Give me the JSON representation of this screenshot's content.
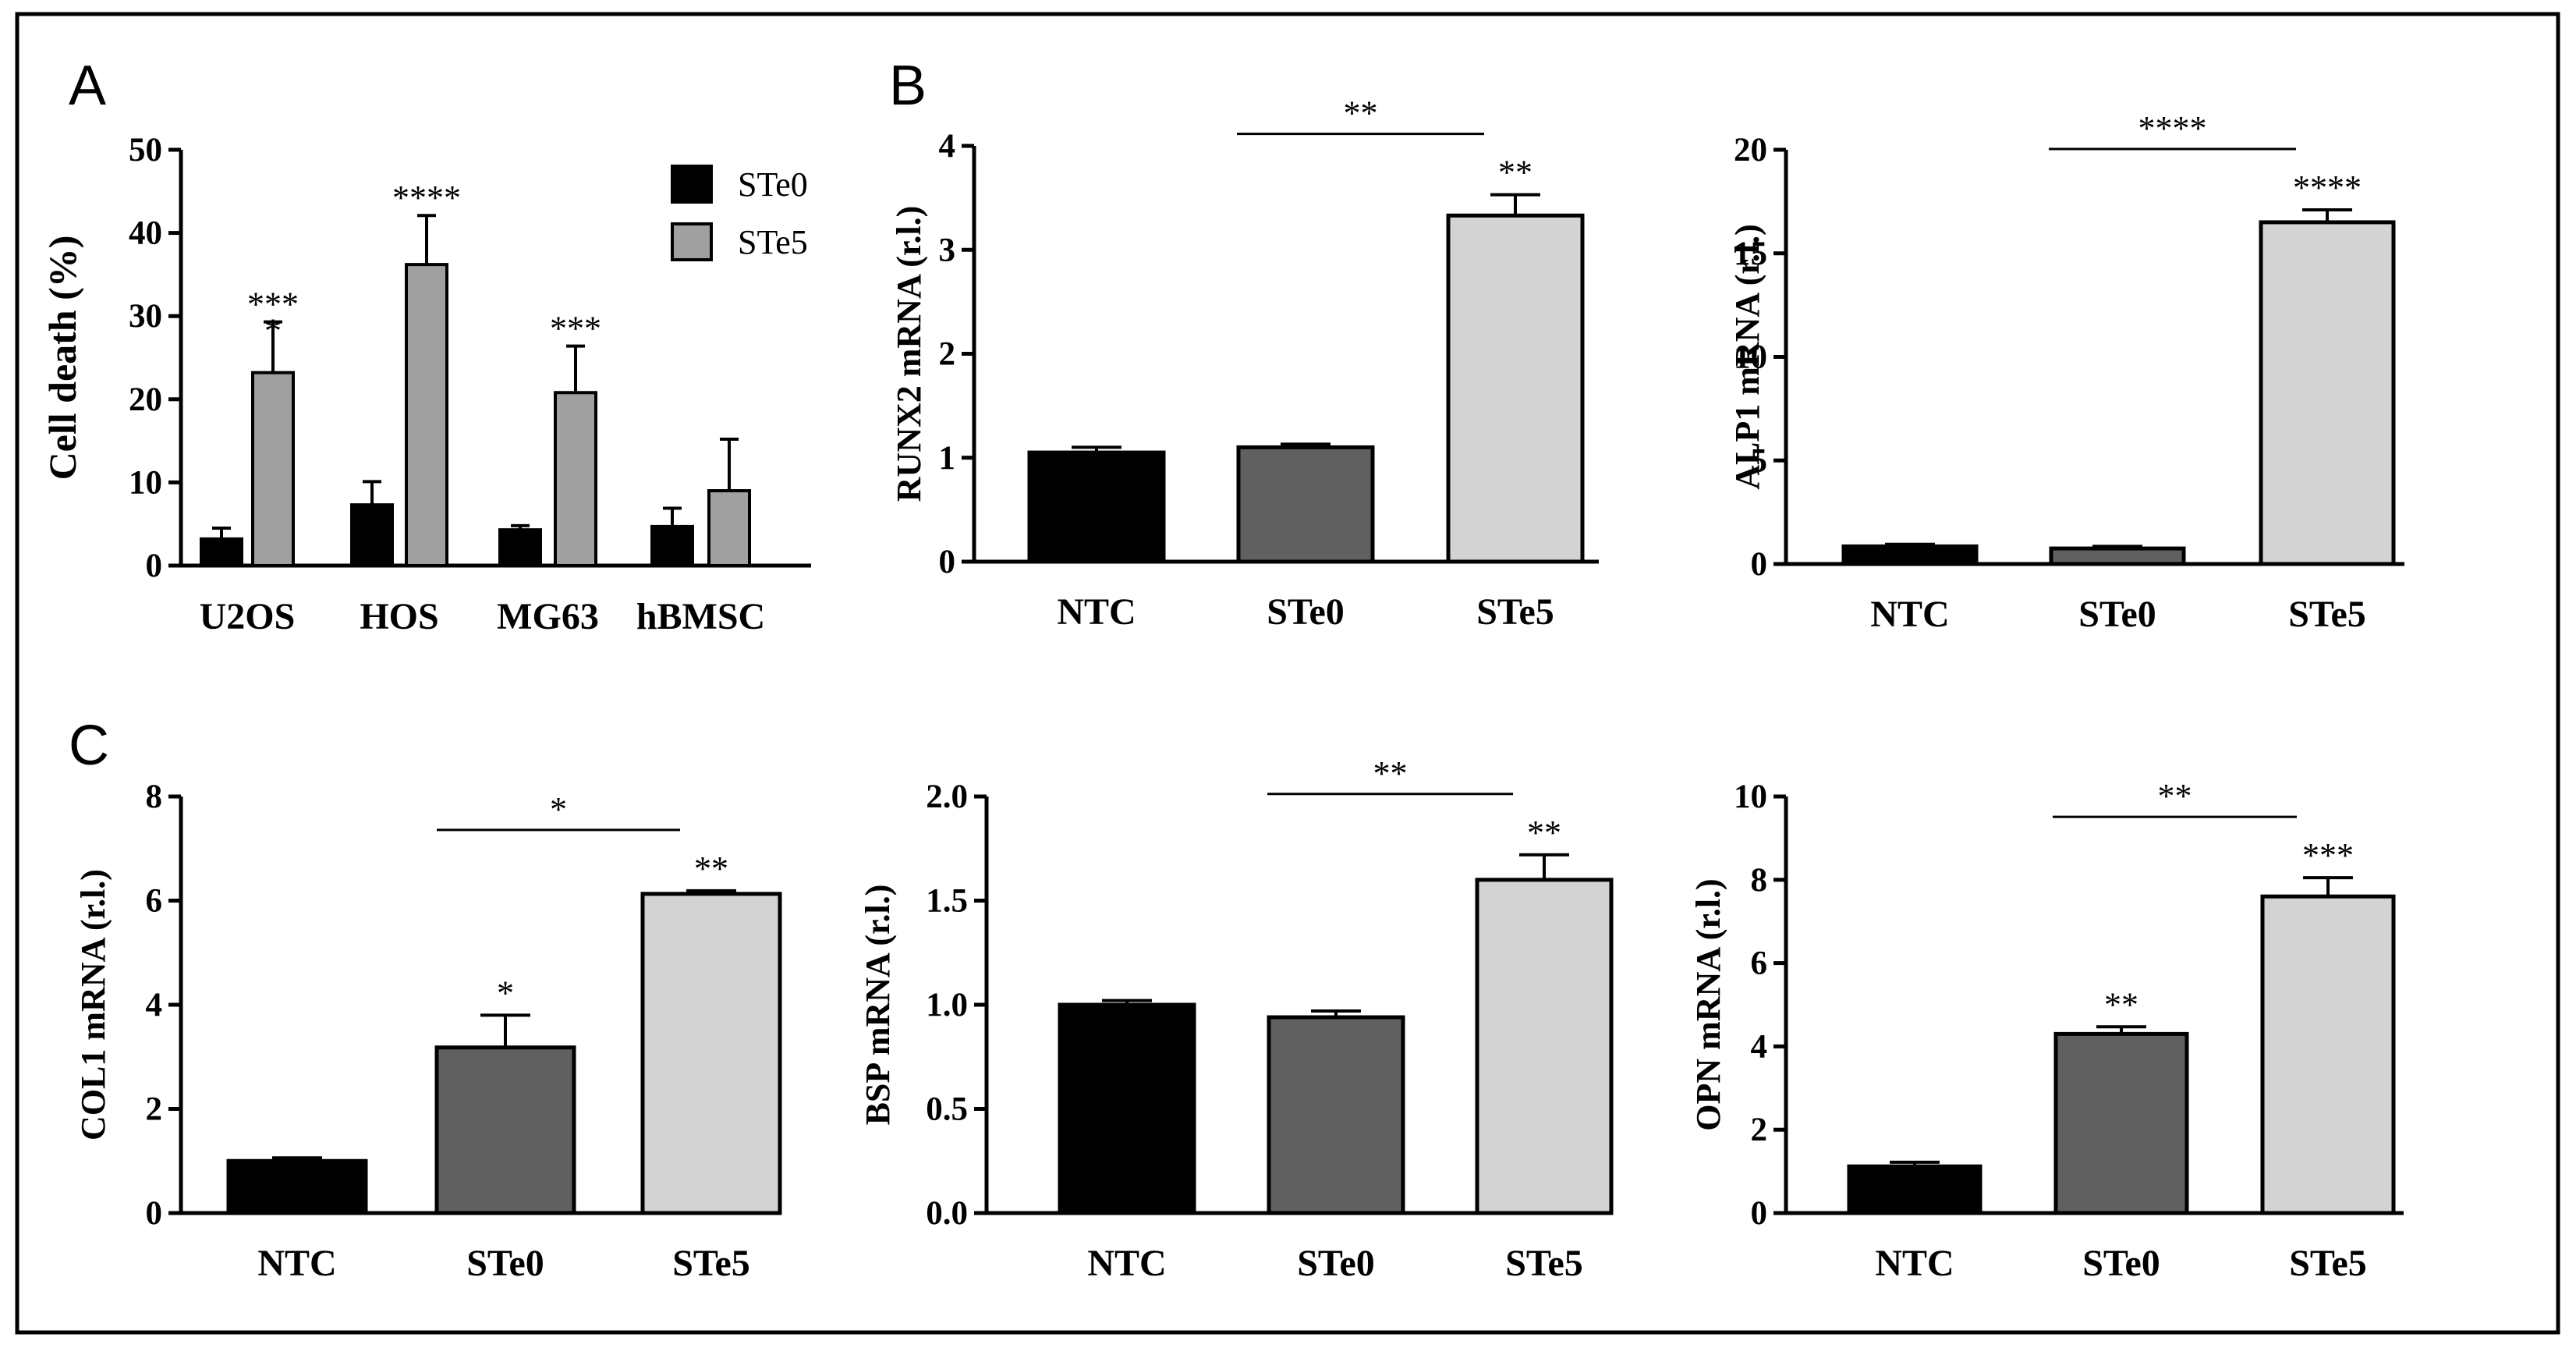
{
  "panels": {
    "A": "A",
    "B": "B",
    "C": "C"
  },
  "colors": {
    "NTC": "#000000",
    "STe0": "#606060",
    "STe5": "#d3d3d3",
    "legend_STe0": "#000000",
    "legend_STe5": "#a0a0a0"
  },
  "chart_data": [
    {
      "id": "A",
      "type": "bar",
      "title": "",
      "ylabel": "Cell death (%)",
      "xlabel": "",
      "ylim": [
        0,
        50
      ],
      "yticks": [
        0,
        10,
        20,
        30,
        40,
        50
      ],
      "categories": [
        "U2OS",
        "HOS",
        "MG63",
        "hBMSC"
      ],
      "series": [
        {
          "name": "STe0",
          "values": [
            3.2,
            7.3,
            4.3,
            4.7
          ],
          "errors": [
            1.3,
            2.8,
            0.5,
            2.2
          ]
        },
        {
          "name": "STe5",
          "values": [
            23.2,
            36.2,
            20.8,
            9.0
          ],
          "errors": [
            6.1,
            5.9,
            5.6,
            6.2
          ]
        }
      ],
      "significance": [
        {
          "category": 0,
          "series": 1,
          "label": "***\n*"
        },
        {
          "category": 1,
          "series": 1,
          "label": "****"
        },
        {
          "category": 2,
          "series": 1,
          "label": "***"
        }
      ],
      "legend": {
        "position": "top-right",
        "entries": [
          "STe0",
          "STe5"
        ]
      }
    },
    {
      "id": "B1",
      "type": "bar",
      "title": "",
      "ylabel": "RUNX2 mRNA (r.l.)",
      "ylim": [
        0,
        4
      ],
      "yticks": [
        0,
        1,
        2,
        3,
        4
      ],
      "ytick_labels": [
        "0",
        "1",
        "2",
        "3",
        "4"
      ],
      "categories": [
        "NTC",
        "STe0",
        "STe5"
      ],
      "values": [
        1.05,
        1.1,
        3.33
      ],
      "errors": [
        0.05,
        0.03,
        0.2
      ],
      "bar_labels": [
        "",
        "",
        "**"
      ],
      "bracket": {
        "from": 1,
        "to": 2,
        "label": "**"
      }
    },
    {
      "id": "B2",
      "type": "bar",
      "title": "",
      "ylabel": "ALP1 mRNA (r.l.)",
      "ylim": [
        0,
        20
      ],
      "yticks": [
        0,
        5,
        10,
        15,
        20
      ],
      "ytick_labels": [
        "0",
        "5",
        "10",
        "15",
        "20"
      ],
      "categories": [
        "NTC",
        "STe0",
        "STe5"
      ],
      "values": [
        0.85,
        0.75,
        16.5
      ],
      "errors": [
        0.1,
        0.1,
        0.6
      ],
      "bar_labels": [
        "",
        "",
        "****"
      ],
      "bracket": {
        "from": 1,
        "to": 2,
        "label": "****"
      }
    },
    {
      "id": "C1",
      "type": "bar",
      "title": "",
      "ylabel": "COL1 mRNA (r.l.)",
      "ylim": [
        0,
        8
      ],
      "yticks": [
        0,
        2,
        4,
        6,
        8
      ],
      "ytick_labels": [
        "0",
        "2",
        "4",
        "6",
        "8"
      ],
      "categories": [
        "NTC",
        "STe0",
        "STe5"
      ],
      "values": [
        1.0,
        3.18,
        6.13
      ],
      "errors": [
        0.06,
        0.62,
        0.06
      ],
      "bar_labels": [
        "",
        "*",
        "**"
      ],
      "bracket": {
        "from": 1,
        "to": 2,
        "label": "*"
      }
    },
    {
      "id": "C2",
      "type": "bar",
      "title": "",
      "ylabel": "BSP mRNA (r.l.)",
      "ylim": [
        0,
        2.0
      ],
      "yticks": [
        0,
        0.5,
        1.0,
        1.5,
        2.0
      ],
      "ytick_labels": [
        "0.0",
        "0.5",
        "1.0",
        "1.5",
        "2.0"
      ],
      "categories": [
        "NTC",
        "STe0",
        "STe5"
      ],
      "values": [
        1.0,
        0.94,
        1.6
      ],
      "errors": [
        0.02,
        0.03,
        0.12
      ],
      "bar_labels": [
        "",
        "",
        "**"
      ],
      "bracket": {
        "from": 1,
        "to": 2,
        "label": "**"
      }
    },
    {
      "id": "C3",
      "type": "bar",
      "title": "",
      "ylabel": "OPN mRNA (r.l.)",
      "ylim": [
        0,
        10
      ],
      "yticks": [
        0,
        2,
        4,
        6,
        8,
        10
      ],
      "ytick_labels": [
        "0",
        "2",
        "4",
        "6",
        "8",
        "10"
      ],
      "categories": [
        "NTC",
        "STe0",
        "STe5"
      ],
      "values": [
        1.12,
        4.3,
        7.6
      ],
      "errors": [
        0.1,
        0.17,
        0.45
      ],
      "bar_labels": [
        "",
        "**",
        "***"
      ],
      "bracket": {
        "from": 1,
        "to": 2,
        "label": "**"
      }
    }
  ]
}
